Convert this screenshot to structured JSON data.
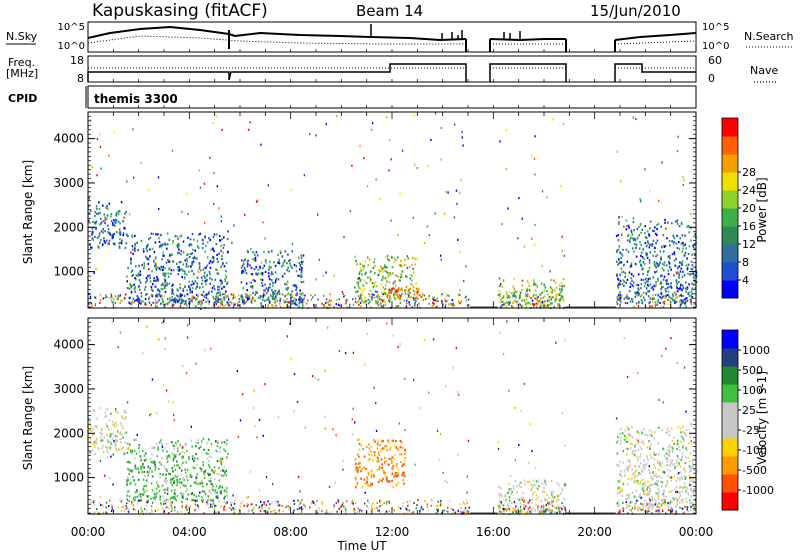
{
  "header": {
    "title": "Kapuskasing (fitACF)",
    "beam": "Beam 14",
    "date": "15/Jun/2010"
  },
  "top_panels": {
    "nsky_label": "N.Sky",
    "nsearch_label": "N.Search",
    "freq_label_1": "Freq.",
    "freq_label_2": "[MHz]",
    "cpid_label": "CPID",
    "nave_label": "Nave",
    "nsky_ticks": [
      "10^5",
      "10^0"
    ],
    "nsearch_ticks": [
      "10^5",
      "10^0"
    ],
    "freq_ticks": [
      "18",
      "8"
    ],
    "nave_ticks": [
      "60",
      "0"
    ],
    "cpid_text": "themis 3300"
  },
  "colors": {
    "power_scale": [
      "#0000ff",
      "#1f4fd0",
      "#2f6fa0",
      "#2e8b57",
      "#3cb043",
      "#8fd22a",
      "#f0e000",
      "#f5a000",
      "#ff6000",
      "#ff0000"
    ],
    "velocity_scale": [
      "#ff0000",
      "#ff5000",
      "#ff9a00",
      "#ffd000",
      "#c8c8c8",
      "#c8c8c8",
      "#40c040",
      "#208830",
      "#204080",
      "#0000ff"
    ]
  },
  "chart_data": [
    {
      "type": "heatmap",
      "title": "Power",
      "xlabel": "Time UT",
      "ylabel": "Slant Range [km]",
      "xlim": [
        "00:00",
        "24:00"
      ],
      "ylim": [
        180,
        4600
      ],
      "x_ticks": [
        "00:00",
        "04:00",
        "08:00",
        "12:00",
        "16:00",
        "20:00",
        "00:00"
      ],
      "y_ticks": [
        "1000",
        "2000",
        "3000",
        "4000"
      ],
      "colorbar_label": "Power [dB]",
      "colorbar_ticks": [
        "4",
        "8",
        "12",
        "16",
        "20",
        "24",
        "28"
      ],
      "gaps": [
        [
          "15:05",
          "16:10"
        ],
        [
          "18:50",
          "20:50"
        ]
      ],
      "echo_regions": [
        {
          "start": "00:00",
          "end": "01:30",
          "range": [
            1550,
            2600
          ],
          "level": "low"
        },
        {
          "start": "01:30",
          "end": "05:30",
          "range": [
            300,
            1900
          ],
          "level": "low"
        },
        {
          "start": "06:00",
          "end": "08:30",
          "range": [
            300,
            1500
          ],
          "level": "low"
        },
        {
          "start": "10:30",
          "end": "13:00",
          "range": [
            300,
            1400
          ],
          "level": "medium"
        },
        {
          "start": "11:45",
          "end": "13:15",
          "range": [
            400,
            700
          ],
          "level": "high"
        },
        {
          "start": "16:10",
          "end": "18:50",
          "range": [
            200,
            900
          ],
          "level": "medium"
        },
        {
          "start": "20:50",
          "end": "24:00",
          "range": [
            300,
            2200
          ],
          "level": "low"
        }
      ]
    },
    {
      "type": "heatmap",
      "title": "Velocity",
      "xlabel": "Time UT",
      "ylabel": "Slant Range [km]",
      "xlim": [
        "00:00",
        "24:00"
      ],
      "ylim": [
        180,
        4600
      ],
      "x_ticks": [
        "00:00",
        "04:00",
        "08:00",
        "12:00",
        "16:00",
        "20:00",
        "00:00"
      ],
      "y_ticks": [
        "1000",
        "2000",
        "3000",
        "4000"
      ],
      "colorbar_label": "Velocity [m s-1]",
      "colorbar_ticks": [
        "1000",
        "500",
        "100",
        "25",
        "-25",
        "-100",
        "-500",
        "-1000"
      ],
      "gaps": [
        [
          "15:05",
          "16:10"
        ],
        [
          "18:50",
          "20:50"
        ]
      ],
      "echo_regions": [
        {
          "start": "00:00",
          "end": "01:30",
          "range": [
            1550,
            2600
          ],
          "level": "near zero"
        },
        {
          "start": "01:30",
          "end": "05:30",
          "range": [
            500,
            1900
          ],
          "level": "positive 25-500"
        },
        {
          "start": "10:30",
          "end": "12:30",
          "range": [
            800,
            1900
          ],
          "level": "negative -100 to -500"
        },
        {
          "start": "16:10",
          "end": "18:50",
          "range": [
            200,
            1000
          ],
          "level": "near zero"
        },
        {
          "start": "20:50",
          "end": "24:00",
          "range": [
            300,
            2200
          ],
          "level": "near zero"
        }
      ]
    }
  ]
}
